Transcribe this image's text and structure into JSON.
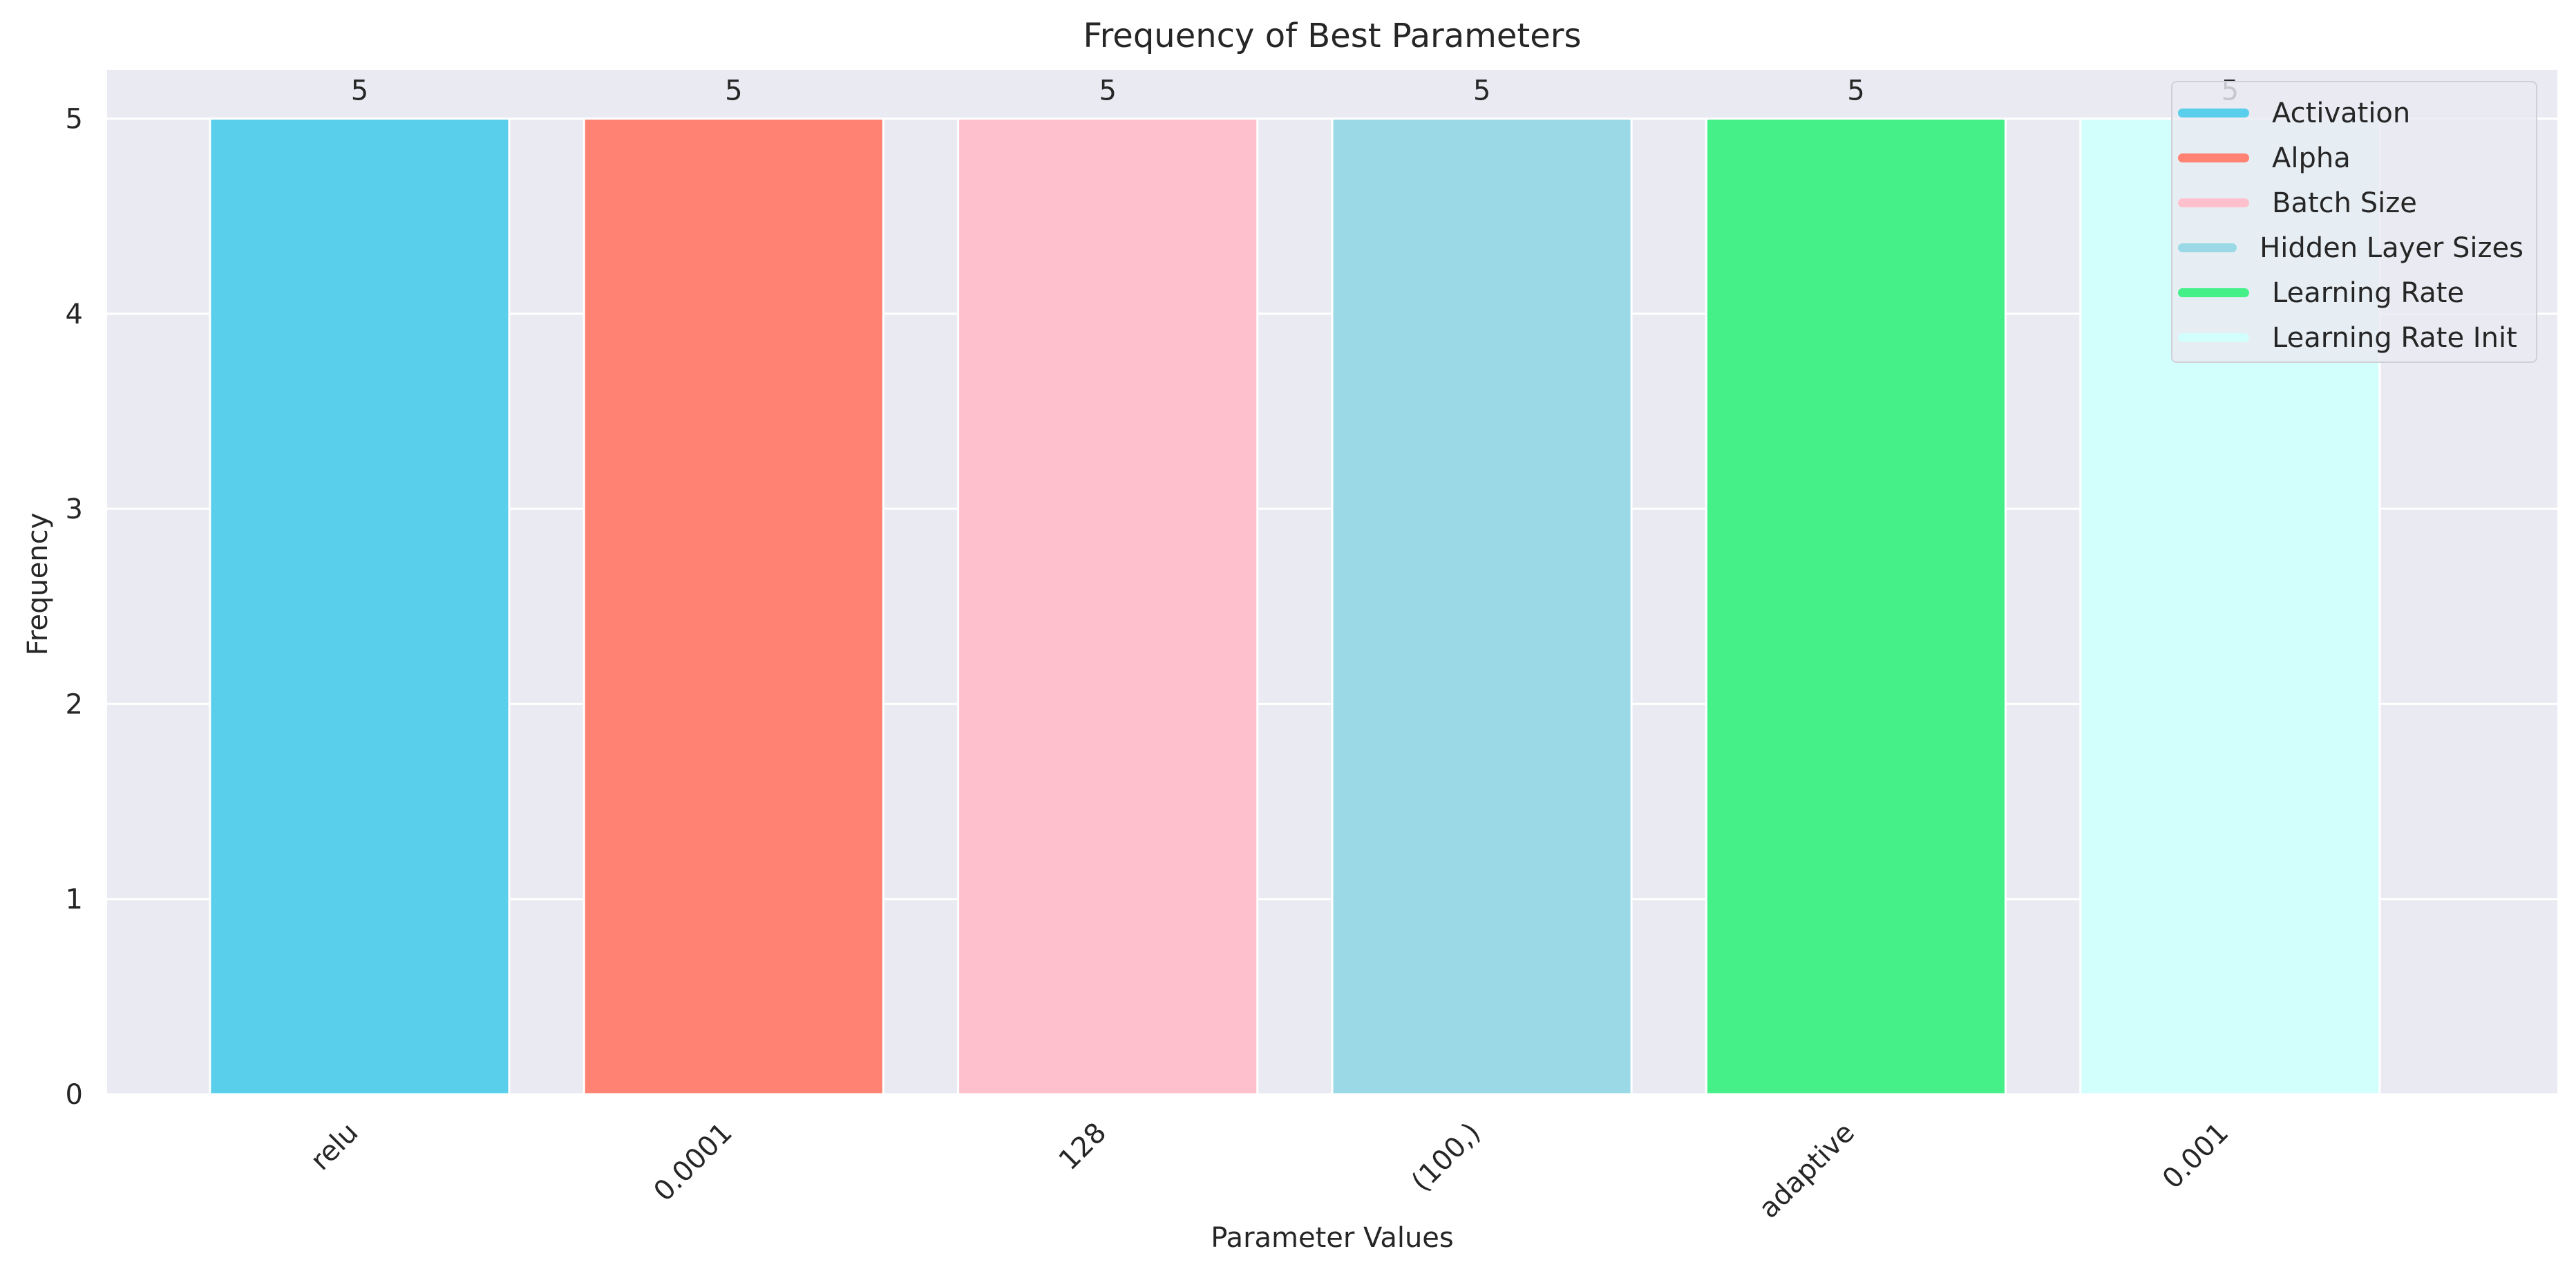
{
  "chart_data": {
    "type": "bar",
    "title": "Frequency of Best Parameters",
    "xlabel": "Parameter Values",
    "ylabel": "Frequency",
    "categories": [
      "relu",
      "0.0001",
      "128",
      "(100,)",
      "adaptive",
      "0.001"
    ],
    "values": [
      5,
      5,
      5,
      5,
      5,
      5
    ],
    "data_labels": [
      "5",
      "5",
      "5",
      "5",
      "5",
      "5"
    ],
    "series": [
      {
        "name": "Activation",
        "category": "relu",
        "value": 5,
        "color": "#5acfeb"
      },
      {
        "name": "Alpha",
        "category": "0.0001",
        "value": 5,
        "color": "#ff8272"
      },
      {
        "name": "Batch Size",
        "category": "128",
        "value": 5,
        "color": "#ffc0cd"
      },
      {
        "name": "Hidden Layer Sizes",
        "category": "(100,)",
        "value": 5,
        "color": "#9bd9e6"
      },
      {
        "name": "Learning Rate",
        "category": "adaptive",
        "value": 5,
        "color": "#45f089"
      },
      {
        "name": "Learning Rate Init",
        "category": "0.001",
        "value": 5,
        "color": "#d2fefc"
      }
    ],
    "ylim": [
      0,
      5.25
    ],
    "yticks": [
      0,
      1,
      2,
      3,
      4,
      5
    ],
    "ytick_labels": [
      "0",
      "1",
      "2",
      "3",
      "4",
      "5"
    ],
    "grid": true,
    "legend_position": "top-right",
    "colors": {
      "plot_background": "#eaeaf2",
      "grid": "#ffffff",
      "text": "#262626"
    }
  }
}
